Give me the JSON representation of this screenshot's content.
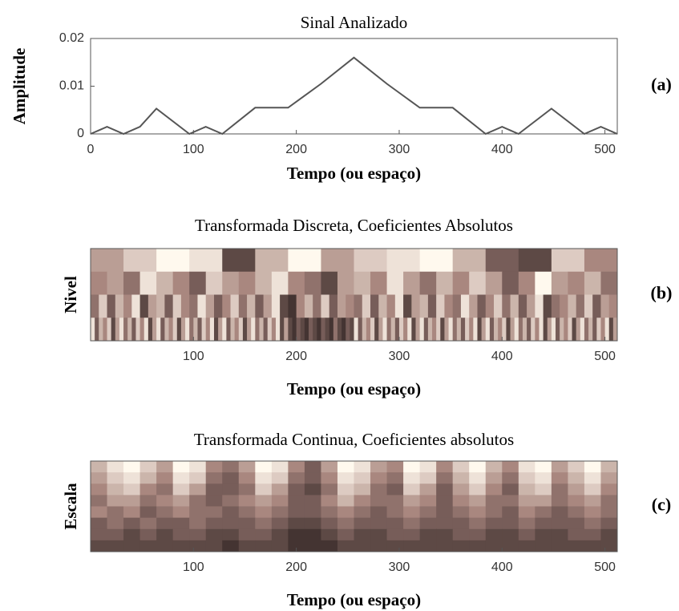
{
  "chart_data": [
    {
      "type": "line",
      "title": "Sinal Analizado",
      "xlabel": "Tempo (ou espaço)",
      "ylabel": "Amplitude",
      "label": "(a)",
      "x": [
        0,
        16,
        32,
        48,
        64,
        96,
        112,
        128,
        160,
        192,
        224,
        256,
        288,
        320,
        352,
        384,
        400,
        416,
        448,
        480,
        496,
        512
      ],
      "values": [
        0,
        0.0015,
        0,
        0.0015,
        0.0053,
        0,
        0.0015,
        0,
        0.0055,
        0.0055,
        0.0105,
        0.016,
        0.0105,
        0.0055,
        0.0055,
        0,
        0.0015,
        0,
        0.0053,
        0,
        0.0015,
        0
      ],
      "color": "#555555",
      "xlim": [
        0,
        512
      ],
      "xticks": [
        0,
        100,
        200,
        300,
        400,
        500
      ],
      "ylim": [
        0,
        0.02
      ],
      "yticks": [
        0,
        0.01,
        0.02
      ]
    },
    {
      "type": "heatmap",
      "title": "Transformada Discreta, Coeficientes Absolutos",
      "xlabel": "Tempo (ou espaço)",
      "ylabel": "Nivel",
      "label": "(b)",
      "xlim": [
        0,
        512
      ],
      "xticks": [
        100,
        200,
        300,
        400,
        500
      ],
      "clim": [
        0,
        1
      ],
      "colormap": [
        "#2b1f1f",
        "#a9877f",
        "#fff9ee"
      ],
      "values": [
        [
          0.6,
          0.8,
          1.0,
          0.9,
          0.2,
          0.7,
          1.0,
          0.6,
          0.8,
          0.9,
          1.0,
          0.7,
          0.3,
          0.2,
          0.8,
          0.5
        ],
        [
          0.5,
          0.6,
          0.4,
          0.9,
          0.7,
          0.5,
          0.3,
          0.8,
          0.6,
          0.5,
          0.7,
          0.9,
          0.5,
          0.4,
          0.2,
          0.6,
          0.7,
          0.5,
          0.9,
          0.6,
          0.4,
          0.7,
          0.5,
          0.8,
          0.6,
          0.3,
          0.5,
          1.0,
          0.6,
          0.5,
          0.7,
          0.4
        ],
        [
          0.4,
          0.8,
          0.3,
          0.7,
          0.5,
          0.9,
          0.2,
          0.6,
          0.7,
          0.3,
          0.8,
          0.5,
          0.4,
          0.9,
          0.6,
          0.3,
          0.5,
          0.8,
          0.4,
          0.7,
          0.3,
          0.6,
          0.9,
          0.2,
          0.1,
          0.5,
          0.7,
          0.4,
          0.8,
          0.3,
          0.6,
          0.5,
          0.4,
          0.8,
          0.3,
          0.7,
          0.5,
          0.9,
          0.2,
          0.6,
          0.7,
          0.3,
          0.8,
          0.5,
          0.4,
          0.9,
          0.6,
          0.3,
          0.5,
          0.8,
          0.4,
          0.7,
          0.3,
          0.6,
          0.9,
          0.2,
          0.4,
          0.5,
          0.7,
          0.4,
          0.8,
          0.3,
          0.6,
          0.5
        ],
        [
          0.9,
          0.3,
          0.7,
          0.5,
          0.8,
          0.2,
          0.6,
          0.9,
          0.4,
          0.7,
          0.3,
          0.8,
          0.5,
          0.9,
          0.2,
          0.6,
          0.9,
          0.3,
          0.7,
          0.5,
          0.8,
          0.2,
          0.6,
          0.9,
          0.4,
          0.7,
          0.3,
          0.8,
          0.5,
          0.9,
          0.2,
          0.6,
          0.9,
          0.3,
          0.7,
          0.5,
          0.8,
          0.2,
          0.6,
          0.9,
          0.4,
          0.7,
          0.3,
          0.8,
          0.5,
          0.9,
          0.2,
          0.6,
          0.2,
          0.1,
          0.3,
          0.2,
          0.1,
          0.3,
          0.2,
          0.1,
          0.3,
          0.2,
          0.1,
          0.4,
          0.2,
          0.1,
          0.3,
          0.2,
          0.9,
          0.3,
          0.7,
          0.5,
          0.8,
          0.2,
          0.6,
          0.9,
          0.4,
          0.7,
          0.3,
          0.8,
          0.5,
          0.9,
          0.2,
          0.6,
          0.9,
          0.3,
          0.7,
          0.5,
          0.8,
          0.2,
          0.6,
          0.9,
          0.4,
          0.7,
          0.3,
          0.8,
          0.5,
          0.9,
          0.2,
          0.6,
          0.9,
          0.3,
          0.7,
          0.5,
          0.8,
          0.2,
          0.6,
          0.9,
          0.4,
          0.7,
          0.3,
          0.8,
          0.5,
          0.9,
          0.2,
          0.6,
          0.9,
          0.3,
          0.7,
          0.5,
          0.8,
          0.2,
          0.6,
          0.9,
          0.4,
          0.7,
          0.3,
          0.8,
          0.5,
          0.9,
          0.2,
          0.6
        ]
      ]
    },
    {
      "type": "heatmap",
      "title": "Transformada Continua, Coeficientes absolutos",
      "xlabel": "Tempo (ou espaço)",
      "ylabel": "Escala",
      "label": "(c)",
      "xlim": [
        0,
        512
      ],
      "xticks": [
        100,
        200,
        300,
        400,
        500
      ],
      "clim": [
        0,
        1
      ],
      "colormap": [
        "#2b1f1f",
        "#a9877f",
        "#fff9ee"
      ],
      "values": [
        [
          0.7,
          0.9,
          1.0,
          0.8,
          0.6,
          1.0,
          0.9,
          0.5,
          0.4,
          0.6,
          1.0,
          0.9,
          0.5,
          0.3,
          0.6,
          1.0,
          0.9,
          0.6,
          0.5,
          1.0,
          0.9,
          0.5,
          0.8,
          1.0,
          0.7,
          0.5,
          0.9,
          1.0,
          0.6,
          0.8,
          1.0,
          0.7
        ],
        [
          0.6,
          0.8,
          0.9,
          0.7,
          0.5,
          0.9,
          0.8,
          0.4,
          0.3,
          0.5,
          0.9,
          0.8,
          0.4,
          0.3,
          0.5,
          0.9,
          0.8,
          0.5,
          0.4,
          0.9,
          0.8,
          0.4,
          0.7,
          0.9,
          0.6,
          0.4,
          0.8,
          0.9,
          0.5,
          0.7,
          0.9,
          0.6
        ],
        [
          0.5,
          0.7,
          0.8,
          0.5,
          0.4,
          0.8,
          0.6,
          0.3,
          0.3,
          0.4,
          0.8,
          0.6,
          0.3,
          0.2,
          0.4,
          0.8,
          0.7,
          0.4,
          0.3,
          0.8,
          0.6,
          0.3,
          0.6,
          0.8,
          0.5,
          0.3,
          0.7,
          0.8,
          0.4,
          0.6,
          0.8,
          0.5
        ],
        [
          0.4,
          0.6,
          0.6,
          0.4,
          0.5,
          0.6,
          0.4,
          0.3,
          0.4,
          0.5,
          0.6,
          0.5,
          0.3,
          0.3,
          0.5,
          0.7,
          0.5,
          0.4,
          0.4,
          0.6,
          0.5,
          0.3,
          0.5,
          0.6,
          0.4,
          0.4,
          0.6,
          0.6,
          0.4,
          0.5,
          0.6,
          0.4
        ],
        [
          0.5,
          0.4,
          0.5,
          0.3,
          0.4,
          0.5,
          0.4,
          0.4,
          0.3,
          0.4,
          0.5,
          0.4,
          0.3,
          0.3,
          0.4,
          0.5,
          0.4,
          0.3,
          0.4,
          0.5,
          0.4,
          0.3,
          0.4,
          0.5,
          0.4,
          0.3,
          0.5,
          0.4,
          0.3,
          0.4,
          0.5,
          0.4
        ],
        [
          0.3,
          0.4,
          0.3,
          0.4,
          0.3,
          0.3,
          0.4,
          0.3,
          0.3,
          0.3,
          0.4,
          0.3,
          0.2,
          0.2,
          0.3,
          0.4,
          0.3,
          0.3,
          0.3,
          0.4,
          0.3,
          0.3,
          0.3,
          0.4,
          0.3,
          0.3,
          0.4,
          0.3,
          0.3,
          0.3,
          0.4,
          0.3
        ],
        [
          0.3,
          0.3,
          0.2,
          0.3,
          0.2,
          0.3,
          0.3,
          0.2,
          0.2,
          0.3,
          0.3,
          0.2,
          0.1,
          0.1,
          0.2,
          0.3,
          0.2,
          0.2,
          0.3,
          0.3,
          0.2,
          0.2,
          0.3,
          0.3,
          0.2,
          0.2,
          0.3,
          0.2,
          0.2,
          0.3,
          0.3,
          0.2
        ],
        [
          0.2,
          0.2,
          0.2,
          0.2,
          0.2,
          0.2,
          0.2,
          0.2,
          0.1,
          0.2,
          0.2,
          0.2,
          0.1,
          0.1,
          0.1,
          0.2,
          0.2,
          0.2,
          0.2,
          0.2,
          0.2,
          0.2,
          0.2,
          0.2,
          0.2,
          0.2,
          0.2,
          0.2,
          0.2,
          0.2,
          0.2,
          0.2
        ]
      ]
    }
  ]
}
